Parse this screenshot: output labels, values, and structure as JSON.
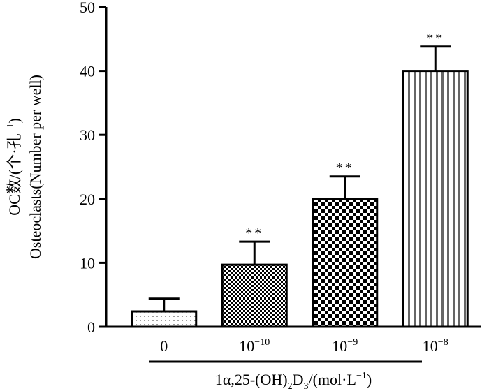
{
  "chart_data": {
    "type": "bar",
    "categories": [
      {
        "base": "0",
        "exp": ""
      },
      {
        "base": "10",
        "exp": "−10"
      },
      {
        "base": "10",
        "exp": "−9"
      },
      {
        "base": "10",
        "exp": "−8"
      }
    ],
    "values": [
      2.4,
      9.7,
      20.0,
      40.0
    ],
    "errors": [
      2.0,
      3.6,
      3.5,
      3.8
    ],
    "significance": [
      "",
      "**",
      "**",
      "**"
    ],
    "patterns": [
      "dots",
      "fine-checker",
      "checker",
      "vertical-stripes"
    ],
    "ylim": [
      0,
      50
    ],
    "yticks": [
      0,
      10,
      20,
      30,
      40,
      50
    ],
    "ylabel_line1": "OC数/(个·孔",
    "ylabel_line1_sup": "−1",
    "ylabel_line1_end": ")",
    "ylabel_line2": "Osteoclasts(Number per well)",
    "xlabel": {
      "p1": "1α,25-(OH)",
      "sub1": "2",
      "p2": "D",
      "sub2": "3",
      "p3": "/(mol·L",
      "sup": "−1",
      "p4": ")"
    },
    "grid": false,
    "bar_fill": "#ffffff",
    "stroke_color": "#000000"
  }
}
